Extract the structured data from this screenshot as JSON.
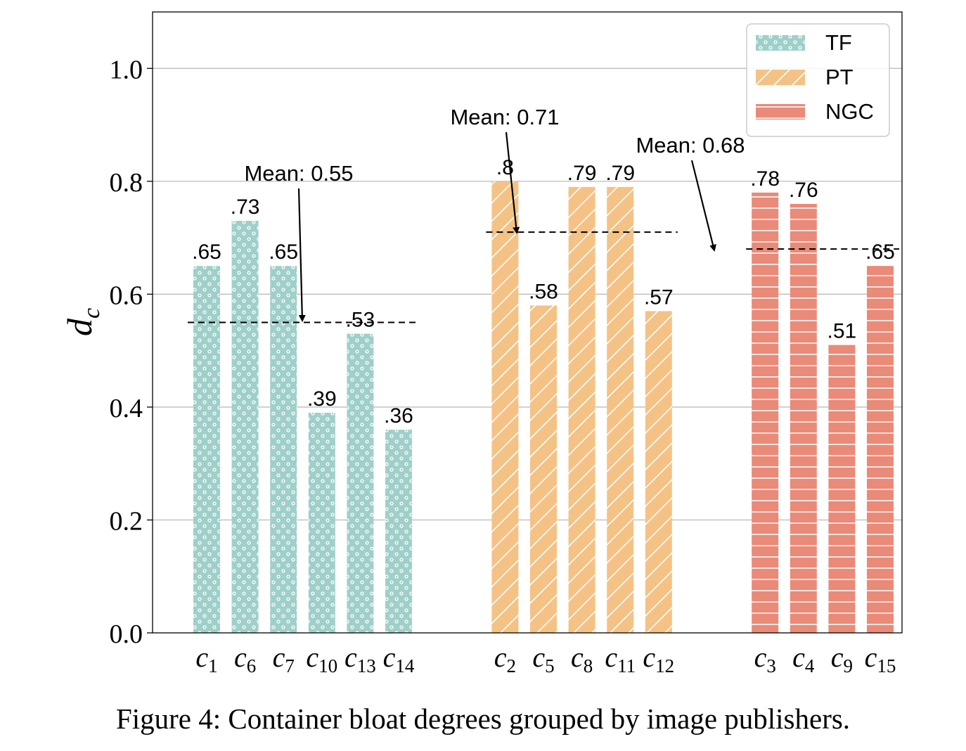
{
  "chart_data": {
    "type": "bar",
    "ylabel": "d",
    "ylabel_subscript": "c",
    "ylim": [
      0,
      1.1
    ],
    "yticks": [
      "0.0",
      "0.2",
      "0.4",
      "0.6",
      "0.8",
      "1.0"
    ],
    "grid": "y",
    "legend_position": "top-right",
    "groups": [
      {
        "name": "TF",
        "color": "#9fcfc9",
        "pattern": "dots",
        "categories": [
          {
            "base": "c",
            "sub": "1"
          },
          {
            "base": "c",
            "sub": "6"
          },
          {
            "base": "c",
            "sub": "7"
          },
          {
            "base": "c",
            "sub": "10"
          },
          {
            "base": "c",
            "sub": "13"
          },
          {
            "base": "c",
            "sub": "14"
          }
        ],
        "values": [
          0.65,
          0.73,
          0.65,
          0.39,
          0.53,
          0.36
        ],
        "value_labels": [
          ".65",
          ".73",
          ".65",
          ".39",
          ".53",
          ".36"
        ],
        "mean": 0.55,
        "mean_label": "Mean: 0.55"
      },
      {
        "name": "PT",
        "color": "#f5c285",
        "pattern": "diagonal",
        "categories": [
          {
            "base": "c",
            "sub": "2"
          },
          {
            "base": "c",
            "sub": "5"
          },
          {
            "base": "c",
            "sub": "8"
          },
          {
            "base": "c",
            "sub": "11"
          },
          {
            "base": "c",
            "sub": "12"
          }
        ],
        "values": [
          0.8,
          0.58,
          0.79,
          0.79,
          0.57
        ],
        "value_labels": [
          ".8",
          ".58",
          ".79",
          ".79",
          ".57"
        ],
        "mean": 0.71,
        "mean_label": "Mean: 0.71"
      },
      {
        "name": "NGC",
        "color": "#ea8a78",
        "pattern": "horizontal",
        "categories": [
          {
            "base": "c",
            "sub": "3"
          },
          {
            "base": "c",
            "sub": "4"
          },
          {
            "base": "c",
            "sub": "9"
          },
          {
            "base": "c",
            "sub": "15"
          }
        ],
        "values": [
          0.78,
          0.76,
          0.51,
          0.65
        ],
        "value_labels": [
          ".78",
          ".76",
          ".51",
          ".65"
        ],
        "mean": 0.68,
        "mean_label": "Mean: 0.68"
      }
    ]
  },
  "caption": "Figure 4: Container bloat degrees grouped by image publishers."
}
